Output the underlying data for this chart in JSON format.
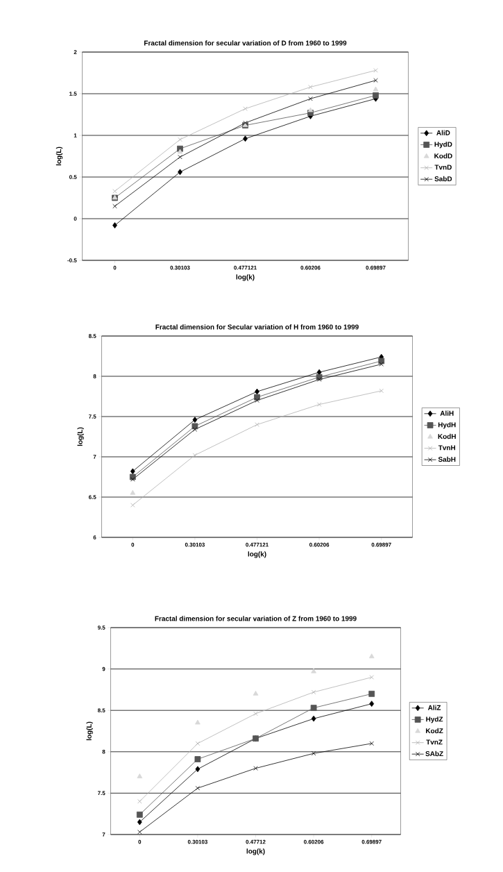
{
  "chart_data": [
    {
      "type": "line",
      "title": "Fractal dimension for secular variation of D from 1960 to 1999",
      "xlabel": "log(k)",
      "ylabel": "log(L)",
      "categories": [
        "0",
        "0.30103",
        "0.477121",
        "0.60206",
        "0.69897"
      ],
      "ylim": [
        -0.5,
        2
      ],
      "yticks": [
        -0.5,
        0,
        0.5,
        1,
        1.5,
        2
      ],
      "grid": "y",
      "legend": "right",
      "series": [
        {
          "name": "AliD",
          "color": "#000000",
          "marker": "diamond",
          "values": [
            -0.08,
            0.56,
            0.96,
            1.23,
            1.44
          ]
        },
        {
          "name": "HydD",
          "color": "#555555",
          "marker": "square",
          "values": [
            0.25,
            0.84,
            1.12,
            1.27,
            1.48
          ]
        },
        {
          "name": "KodD",
          "type": "scatter",
          "color": "#d8d8d8",
          "marker": "triangle",
          "values": [
            0.25,
            0.8,
            1.12,
            1.3,
            1.55
          ]
        },
        {
          "name": "TvnD",
          "color": "#b0b0b0",
          "marker": "cross",
          "values": [
            0.33,
            0.95,
            1.32,
            1.58,
            1.78
          ]
        },
        {
          "name": "SabD",
          "color": "#000000",
          "marker": "cross",
          "values": [
            0.15,
            0.74,
            1.15,
            1.44,
            1.66
          ]
        }
      ]
    },
    {
      "type": "line",
      "title": "Fractal dimension for Secular variation of H from 1960 to 1999",
      "xlabel": "log(k)",
      "ylabel": "log(L)",
      "categories": [
        "0",
        "0.30103",
        "0.477121",
        "0.60206",
        "0.69897"
      ],
      "ylim": [
        6,
        8.5
      ],
      "yticks": [
        6,
        6.5,
        7,
        7.5,
        8,
        8.5
      ],
      "grid": "y",
      "legend": "right",
      "series": [
        {
          "name": "AliH",
          "color": "#000000",
          "marker": "diamond",
          "values": [
            6.82,
            7.46,
            7.81,
            8.05,
            8.24
          ]
        },
        {
          "name": "HydH",
          "color": "#555555",
          "marker": "square",
          "values": [
            6.75,
            7.38,
            7.74,
            7.99,
            8.19
          ]
        },
        {
          "name": "KodH",
          "type": "scatter",
          "color": "#d8d8d8",
          "marker": "triangle",
          "values": [
            6.55,
            null,
            null,
            null,
            null
          ]
        },
        {
          "name": "TvnH",
          "color": "#b0b0b0",
          "marker": "cross",
          "values": [
            6.4,
            7.02,
            7.4,
            7.65,
            7.82
          ]
        },
        {
          "name": "SabH",
          "color": "#000000",
          "marker": "cross",
          "values": [
            6.72,
            7.34,
            7.7,
            7.96,
            8.15
          ]
        }
      ]
    },
    {
      "type": "line",
      "title": "Fractal dimension for secular variation of Z from 1960 to 1999",
      "xlabel": "log(k)",
      "ylabel": "log(L)",
      "categories": [
        "0",
        "0.30103",
        "0.47712",
        "0.60206",
        "0.69897"
      ],
      "ylim": [
        7,
        9.5
      ],
      "yticks": [
        7,
        7.5,
        8,
        8.5,
        9,
        9.5
      ],
      "grid": "y",
      "legend": "right",
      "series": [
        {
          "name": "AliZ",
          "color": "#000000",
          "marker": "diamond",
          "values": [
            7.15,
            7.79,
            8.16,
            8.4,
            8.58
          ]
        },
        {
          "name": "HydZ",
          "color": "#555555",
          "marker": "square",
          "values": [
            7.24,
            7.91,
            8.16,
            8.53,
            8.7
          ]
        },
        {
          "name": "KodZ",
          "type": "scatter",
          "color": "#d8d8d8",
          "marker": "triangle",
          "values": [
            7.7,
            8.35,
            8.7,
            8.97,
            9.15
          ]
        },
        {
          "name": "TvnZ",
          "color": "#b0b0b0",
          "marker": "cross",
          "values": [
            7.4,
            8.1,
            8.46,
            8.72,
            8.9
          ]
        },
        {
          "name": "SAbZ",
          "color": "#000000",
          "marker": "cross",
          "values": [
            7.03,
            7.56,
            7.8,
            7.98,
            8.1
          ]
        }
      ]
    }
  ]
}
